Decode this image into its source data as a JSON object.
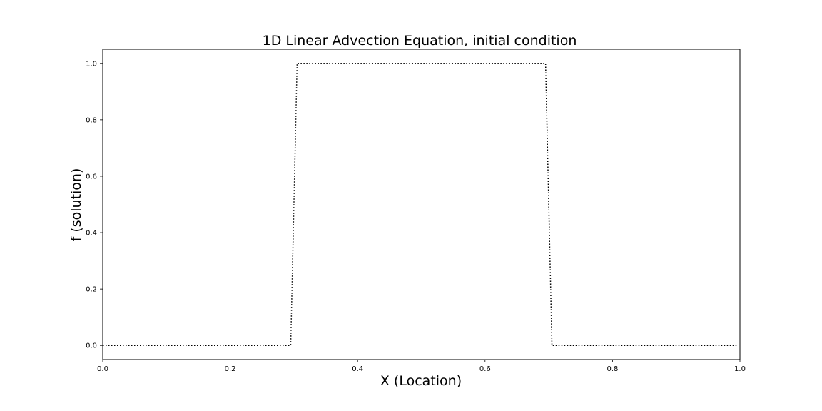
{
  "chart_data": {
    "type": "line",
    "title": "1D Linear Advection Equation, initial condition",
    "xlabel": "X (Location)",
    "ylabel": "f (solution)",
    "xlim": [
      0.0,
      1.0
    ],
    "ylim": [
      -0.05,
      1.05
    ],
    "xticks": [
      0.0,
      0.2,
      0.4,
      0.6,
      0.8,
      1.0
    ],
    "xtick_labels": [
      "0.0",
      "0.2",
      "0.4",
      "0.6",
      "0.8",
      "1.0"
    ],
    "yticks": [
      0.0,
      0.2,
      0.4,
      0.6,
      0.8,
      1.0
    ],
    "ytick_labels": [
      "0.0",
      "0.2",
      "0.4",
      "0.6",
      "0.8",
      "1.0"
    ],
    "grid": false,
    "legend": false,
    "series": [
      {
        "line_style": "dotted",
        "color": "#000000",
        "x": [
          0.0,
          0.295,
          0.305,
          0.695,
          0.705,
          0.995
        ],
        "y": [
          0.0,
          0.0,
          1.0,
          1.0,
          0.0,
          0.0
        ]
      }
    ]
  }
}
